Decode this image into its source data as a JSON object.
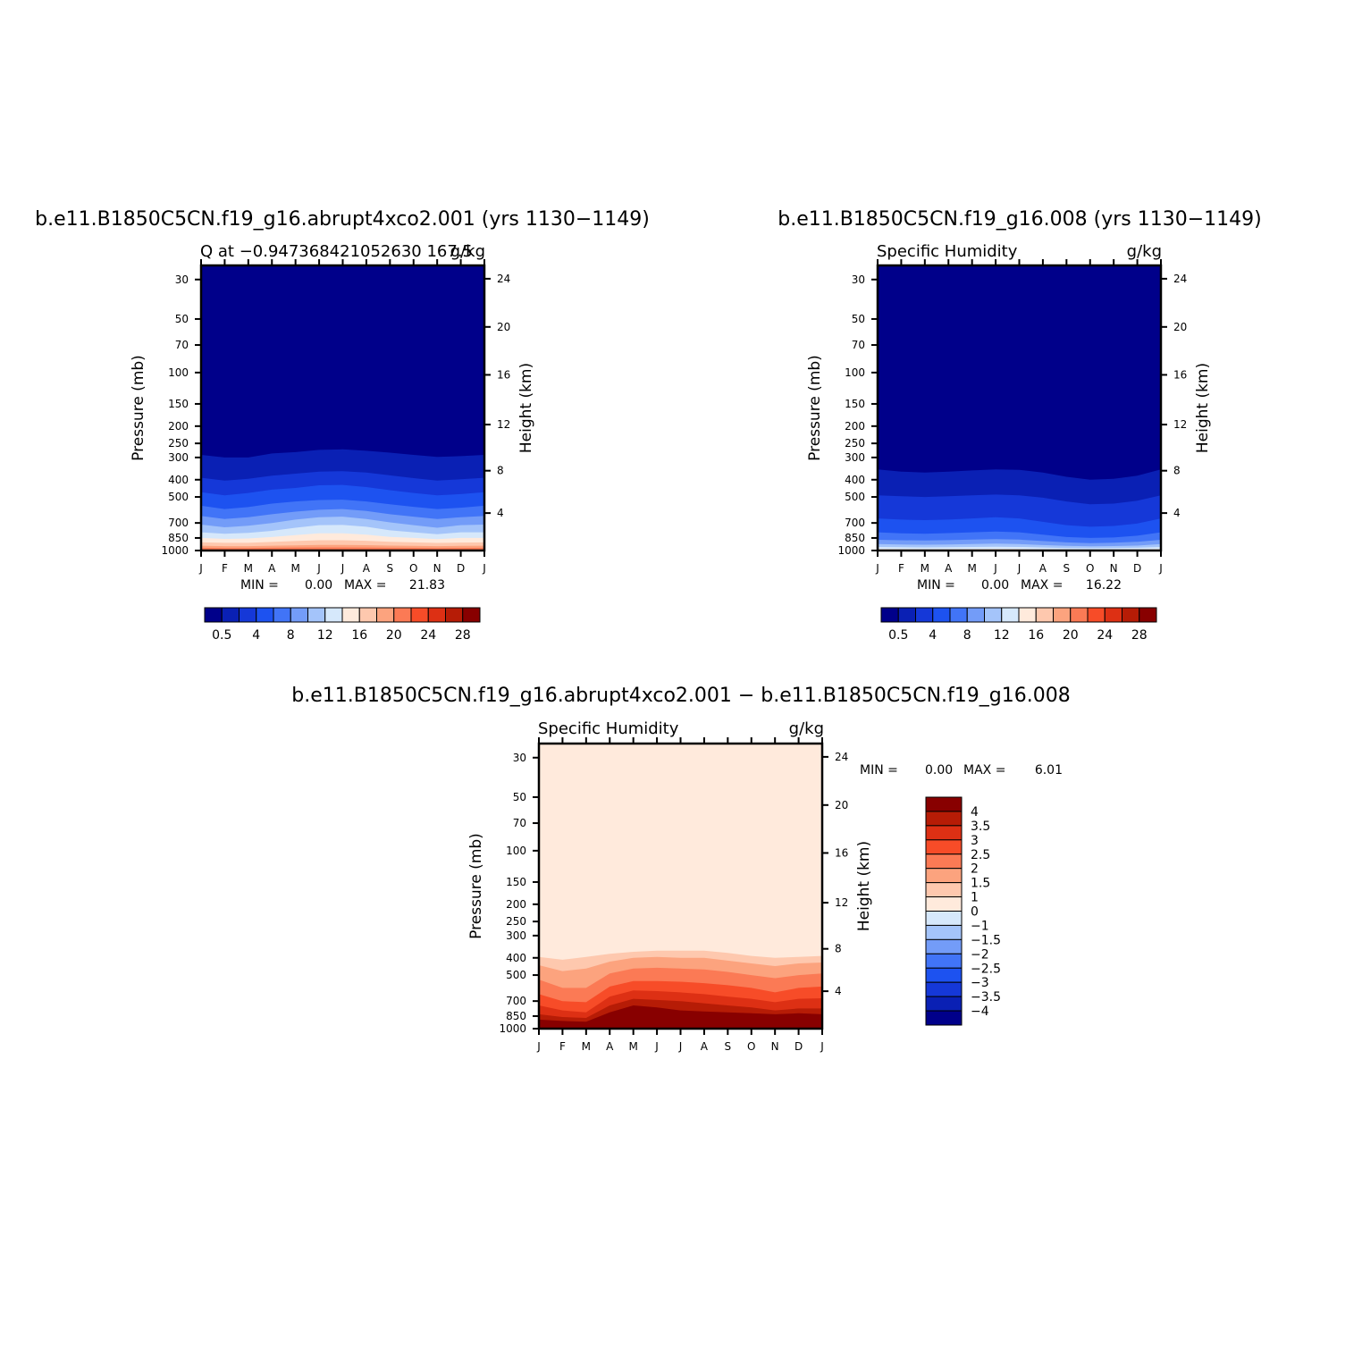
{
  "panels": [
    {
      "case_title": "b.e11.B1850C5CN.f19_g16.abrupt4xco2.001  (yrs  1130−1149)",
      "left_sub": "Q  at  −0.947368421052630  167.5",
      "right_sub": "g/kg",
      "min_label": "MIN  =",
      "min_value": "0.00",
      "max_label": "MAX  =",
      "max_value": "21.83"
    },
    {
      "case_title": "b.e11.B1850C5CN.f19_g16.008  (yrs  1130−1149)",
      "left_sub": "Specific  Humidity",
      "right_sub": "g/kg",
      "min_label": "MIN  =",
      "min_value": "0.00",
      "max_label": "MAX  =",
      "max_value": "16.22"
    },
    {
      "case_title": "b.e11.B1850C5CN.f19_g16.abrupt4xco2.001  −  b.e11.B1850C5CN.f19_g16.008",
      "left_sub": "Specific  Humidity",
      "right_sub": "g/kg",
      "min_label": "MIN  =",
      "min_value": "0.00",
      "max_label": "MAX  =",
      "max_value": "6.01"
    }
  ],
  "chart_data": [
    {
      "type": "heatmap",
      "title": "b.e11.B1850C5CN.f19_g16.abrupt4xco2.001  (yrs  1130−1149)",
      "ylabel": "Pressure  (mb)",
      "ylabel_right": "Height  (km)",
      "x_ticks": [
        "J",
        "F",
        "M",
        "A",
        "M",
        "J",
        "J",
        "A",
        "S",
        "O",
        "N",
        "D",
        "J"
      ],
      "y_ticks": [
        "30",
        "50",
        "70",
        "100",
        "150",
        "200",
        "250",
        "300",
        "400",
        "500",
        "700",
        "850",
        "1000"
      ],
      "y_ticks_right": [
        "24",
        "20",
        "16",
        "12",
        "8",
        "4"
      ],
      "y_scale": "log",
      "y_range_mb": [
        1000,
        25
      ],
      "contour_levels": [
        0.5,
        2,
        4,
        6,
        8,
        10,
        12,
        14,
        16,
        18,
        20,
        22,
        24,
        26,
        28
      ],
      "colorbar_labels": [
        "0.5",
        "4",
        "8",
        "12",
        "16",
        "20",
        "24",
        "28"
      ],
      "colors": [
        "#00008a",
        "#0a20b4",
        "#1538d8",
        "#1d52f0",
        "#4174f7",
        "#739cf8",
        "#a4c4fa",
        "#d6e8fb",
        "#ffeadc",
        "#fec8ae",
        "#fca37e",
        "#fb7a55",
        "#f74c28",
        "#dd3014",
        "#b61c06",
        "#880000"
      ],
      "columns": [
        {
          "month": "J",
          "levels_mb": [
            290,
            390,
            470,
            560,
            640,
            715,
            790,
            850,
            900,
            940,
            965,
            990
          ]
        },
        {
          "month": "F",
          "levels_mb": [
            300,
            405,
            490,
            585,
            665,
            740,
            805,
            860,
            905,
            945,
            968,
            990
          ]
        },
        {
          "month": "M",
          "levels_mb": [
            300,
            395,
            475,
            570,
            650,
            725,
            795,
            855,
            905,
            945,
            968,
            990
          ]
        },
        {
          "month": "A",
          "levels_mb": [
            285,
            380,
            455,
            545,
            625,
            700,
            775,
            840,
            895,
            940,
            965,
            990
          ]
        },
        {
          "month": "M",
          "levels_mb": [
            280,
            370,
            445,
            530,
            605,
            670,
            745,
            820,
            885,
            935,
            962,
            988
          ]
        },
        {
          "month": "J",
          "levels_mb": [
            272,
            360,
            430,
            520,
            590,
            650,
            720,
            800,
            875,
            930,
            960,
            988
          ]
        },
        {
          "month": "J",
          "levels_mb": [
            270,
            358,
            428,
            518,
            585,
            645,
            718,
            800,
            875,
            930,
            960,
            988
          ]
        },
        {
          "month": "A",
          "levels_mb": [
            275,
            365,
            440,
            530,
            600,
            665,
            735,
            815,
            882,
            933,
            962,
            988
          ]
        },
        {
          "month": "S",
          "levels_mb": [
            282,
            378,
            458,
            550,
            625,
            695,
            770,
            838,
            893,
            938,
            965,
            990
          ]
        },
        {
          "month": "O",
          "levels_mb": [
            290,
            392,
            475,
            568,
            645,
            720,
            790,
            850,
            900,
            942,
            966,
            990
          ]
        },
        {
          "month": "N",
          "levels_mb": [
            298,
            405,
            490,
            585,
            665,
            745,
            810,
            862,
            906,
            945,
            968,
            990
          ]
        },
        {
          "month": "D",
          "levels_mb": [
            295,
            398,
            482,
            575,
            650,
            720,
            790,
            850,
            902,
            942,
            967,
            990
          ]
        },
        {
          "month": "J",
          "levels_mb": [
            290,
            390,
            470,
            560,
            640,
            715,
            790,
            850,
            900,
            940,
            965,
            990
          ]
        }
      ]
    },
    {
      "type": "heatmap",
      "title": "b.e11.B1850C5CN.f19_g16.008  (yrs  1130−1149)",
      "ylabel": "Pressure  (mb)",
      "ylabel_right": "Height  (km)",
      "x_ticks": [
        "J",
        "F",
        "M",
        "A",
        "M",
        "J",
        "J",
        "A",
        "S",
        "O",
        "N",
        "D",
        "J"
      ],
      "y_ticks": [
        "30",
        "50",
        "70",
        "100",
        "150",
        "200",
        "250",
        "300",
        "400",
        "500",
        "700",
        "850",
        "1000"
      ],
      "y_ticks_right": [
        "24",
        "20",
        "16",
        "12",
        "8",
        "4"
      ],
      "y_scale": "log",
      "y_range_mb": [
        1000,
        25
      ],
      "contour_levels": [
        0.5,
        2,
        4,
        6,
        8,
        10,
        12,
        14,
        16,
        18,
        20,
        22,
        24,
        26,
        28
      ],
      "colorbar_labels": [
        "0.5",
        "4",
        "8",
        "12",
        "16",
        "20",
        "24",
        "28"
      ],
      "colors": [
        "#00008a",
        "#0a20b4",
        "#1538d8",
        "#1d52f0",
        "#4174f7",
        "#739cf8",
        "#a4c4fa",
        "#d6e8fb",
        "#ffeadc",
        "#fec8ae",
        "#fca37e",
        "#fb7a55",
        "#f74c28",
        "#dd3014",
        "#b61c06",
        "#880000"
      ],
      "columns": [
        {
          "month": "J",
          "levels_mb": [
            350,
            490,
            660,
            790,
            870,
            920,
            955,
            980,
            1000,
            1000,
            1000,
            1000
          ]
        },
        {
          "month": "F",
          "levels_mb": [
            360,
            495,
            670,
            800,
            875,
            925,
            958,
            982,
            1000,
            1000,
            1000,
            1000
          ]
        },
        {
          "month": "M",
          "levels_mb": [
            365,
            500,
            675,
            805,
            878,
            928,
            960,
            983,
            1000,
            1000,
            1000,
            1000
          ]
        },
        {
          "month": "A",
          "levels_mb": [
            360,
            495,
            670,
            798,
            874,
            924,
            957,
            982,
            1000,
            1000,
            1000,
            1000
          ]
        },
        {
          "month": "M",
          "levels_mb": [
            355,
            490,
            660,
            790,
            868,
            920,
            955,
            980,
            1000,
            1000,
            1000,
            1000
          ]
        },
        {
          "month": "J",
          "levels_mb": [
            350,
            485,
            650,
            782,
            862,
            915,
            952,
            978,
            1000,
            1000,
            1000,
            1000
          ]
        },
        {
          "month": "J",
          "levels_mb": [
            352,
            490,
            660,
            790,
            868,
            920,
            955,
            980,
            1000,
            1000,
            1000,
            1000
          ]
        },
        {
          "month": "A",
          "levels_mb": [
            365,
            505,
            690,
            815,
            885,
            932,
            962,
            984,
            1000,
            1000,
            1000,
            1000
          ]
        },
        {
          "month": "S",
          "levels_mb": [
            385,
            530,
            720,
            840,
            900,
            942,
            968,
            986,
            1000,
            1000,
            1000,
            1000
          ]
        },
        {
          "month": "O",
          "levels_mb": [
            400,
            550,
            735,
            850,
            908,
            946,
            970,
            988,
            1000,
            1000,
            1000,
            1000
          ]
        },
        {
          "month": "N",
          "levels_mb": [
            395,
            545,
            728,
            845,
            904,
            944,
            968,
            987,
            1000,
            1000,
            1000,
            1000
          ]
        },
        {
          "month": "D",
          "levels_mb": [
            380,
            525,
            705,
            825,
            893,
            938,
            965,
            985,
            1000,
            1000,
            1000,
            1000
          ]
        },
        {
          "month": "J",
          "levels_mb": [
            350,
            490,
            660,
            790,
            870,
            920,
            955,
            980,
            1000,
            1000,
            1000,
            1000
          ]
        }
      ]
    },
    {
      "type": "heatmap",
      "title": "b.e11.B1850C5CN.f19_g16.abrupt4xco2.001  −  b.e11.B1850C5CN.f19_g16.008",
      "ylabel": "Pressure  (mb)",
      "ylabel_right": "Height  (km)",
      "x_ticks": [
        "J",
        "F",
        "M",
        "A",
        "M",
        "J",
        "J",
        "A",
        "S",
        "O",
        "N",
        "D",
        "J"
      ],
      "y_ticks": [
        "30",
        "50",
        "70",
        "100",
        "150",
        "200",
        "250",
        "300",
        "400",
        "500",
        "700",
        "850",
        "1000"
      ],
      "y_ticks_right": [
        "24",
        "20",
        "16",
        "12",
        "8",
        "4"
      ],
      "y_scale": "log",
      "y_range_mb": [
        1000,
        25
      ],
      "contour_levels": [
        -4,
        -3.5,
        -3,
        -2.5,
        -2,
        -1.5,
        -1,
        0,
        1,
        1.5,
        2,
        2.5,
        3,
        3.5,
        4
      ],
      "colorbar_labels": [
        "4",
        "3.5",
        "3",
        "2.5",
        "2",
        "1.5",
        "1",
        "0",
        "−1",
        "−1.5",
        "−2",
        "−2.5",
        "−3",
        "−3.5",
        "−4"
      ],
      "colors": [
        "#00008a",
        "#0a20b4",
        "#1538d8",
        "#1d52f0",
        "#4174f7",
        "#739cf8",
        "#a4c4fa",
        "#d6e8fb",
        "#ffeadc",
        "#fec8ae",
        "#fca37e",
        "#fb7a55",
        "#f74c28",
        "#dd3014",
        "#b61c06",
        "#880000"
      ],
      "colors_from_level": 8,
      "columns": [
        {
          "month": "J",
          "levels_mb": [
            395,
            440,
            530,
            640,
            740,
            830,
            890,
            940
          ]
        },
        {
          "month": "F",
          "levels_mb": [
            410,
            475,
            590,
            700,
            790,
            860,
            905,
            950
          ]
        },
        {
          "month": "M",
          "levels_mb": [
            395,
            460,
            590,
            710,
            810,
            870,
            915,
            950
          ]
        },
        {
          "month": "A",
          "levels_mb": [
            380,
            420,
            490,
            580,
            660,
            740,
            810,
            880
          ]
        },
        {
          "month": "M",
          "levels_mb": [
            370,
            400,
            460,
            540,
            610,
            680,
            740,
            800
          ]
        },
        {
          "month": "J",
          "levels_mb": [
            365,
            395,
            455,
            540,
            615,
            690,
            760,
            840
          ]
        },
        {
          "month": "J",
          "levels_mb": [
            365,
            400,
            460,
            545,
            625,
            700,
            790,
            870
          ]
        },
        {
          "month": "A",
          "levels_mb": [
            365,
            400,
            465,
            555,
            640,
            720,
            800,
            860
          ]
        },
        {
          "month": "S",
          "levels_mb": [
            375,
            415,
            480,
            570,
            660,
            740,
            810,
            850
          ]
        },
        {
          "month": "O",
          "levels_mb": [
            390,
            430,
            500,
            590,
            680,
            760,
            820,
            850
          ]
        },
        {
          "month": "N",
          "levels_mb": [
            400,
            445,
            520,
            625,
            710,
            790,
            830,
            860
          ]
        },
        {
          "month": "D",
          "levels_mb": [
            395,
            430,
            500,
            590,
            680,
            770,
            820,
            850
          ]
        },
        {
          "month": "J",
          "levels_mb": [
            390,
            425,
            490,
            580,
            675,
            770,
            830,
            900
          ]
        }
      ]
    }
  ]
}
